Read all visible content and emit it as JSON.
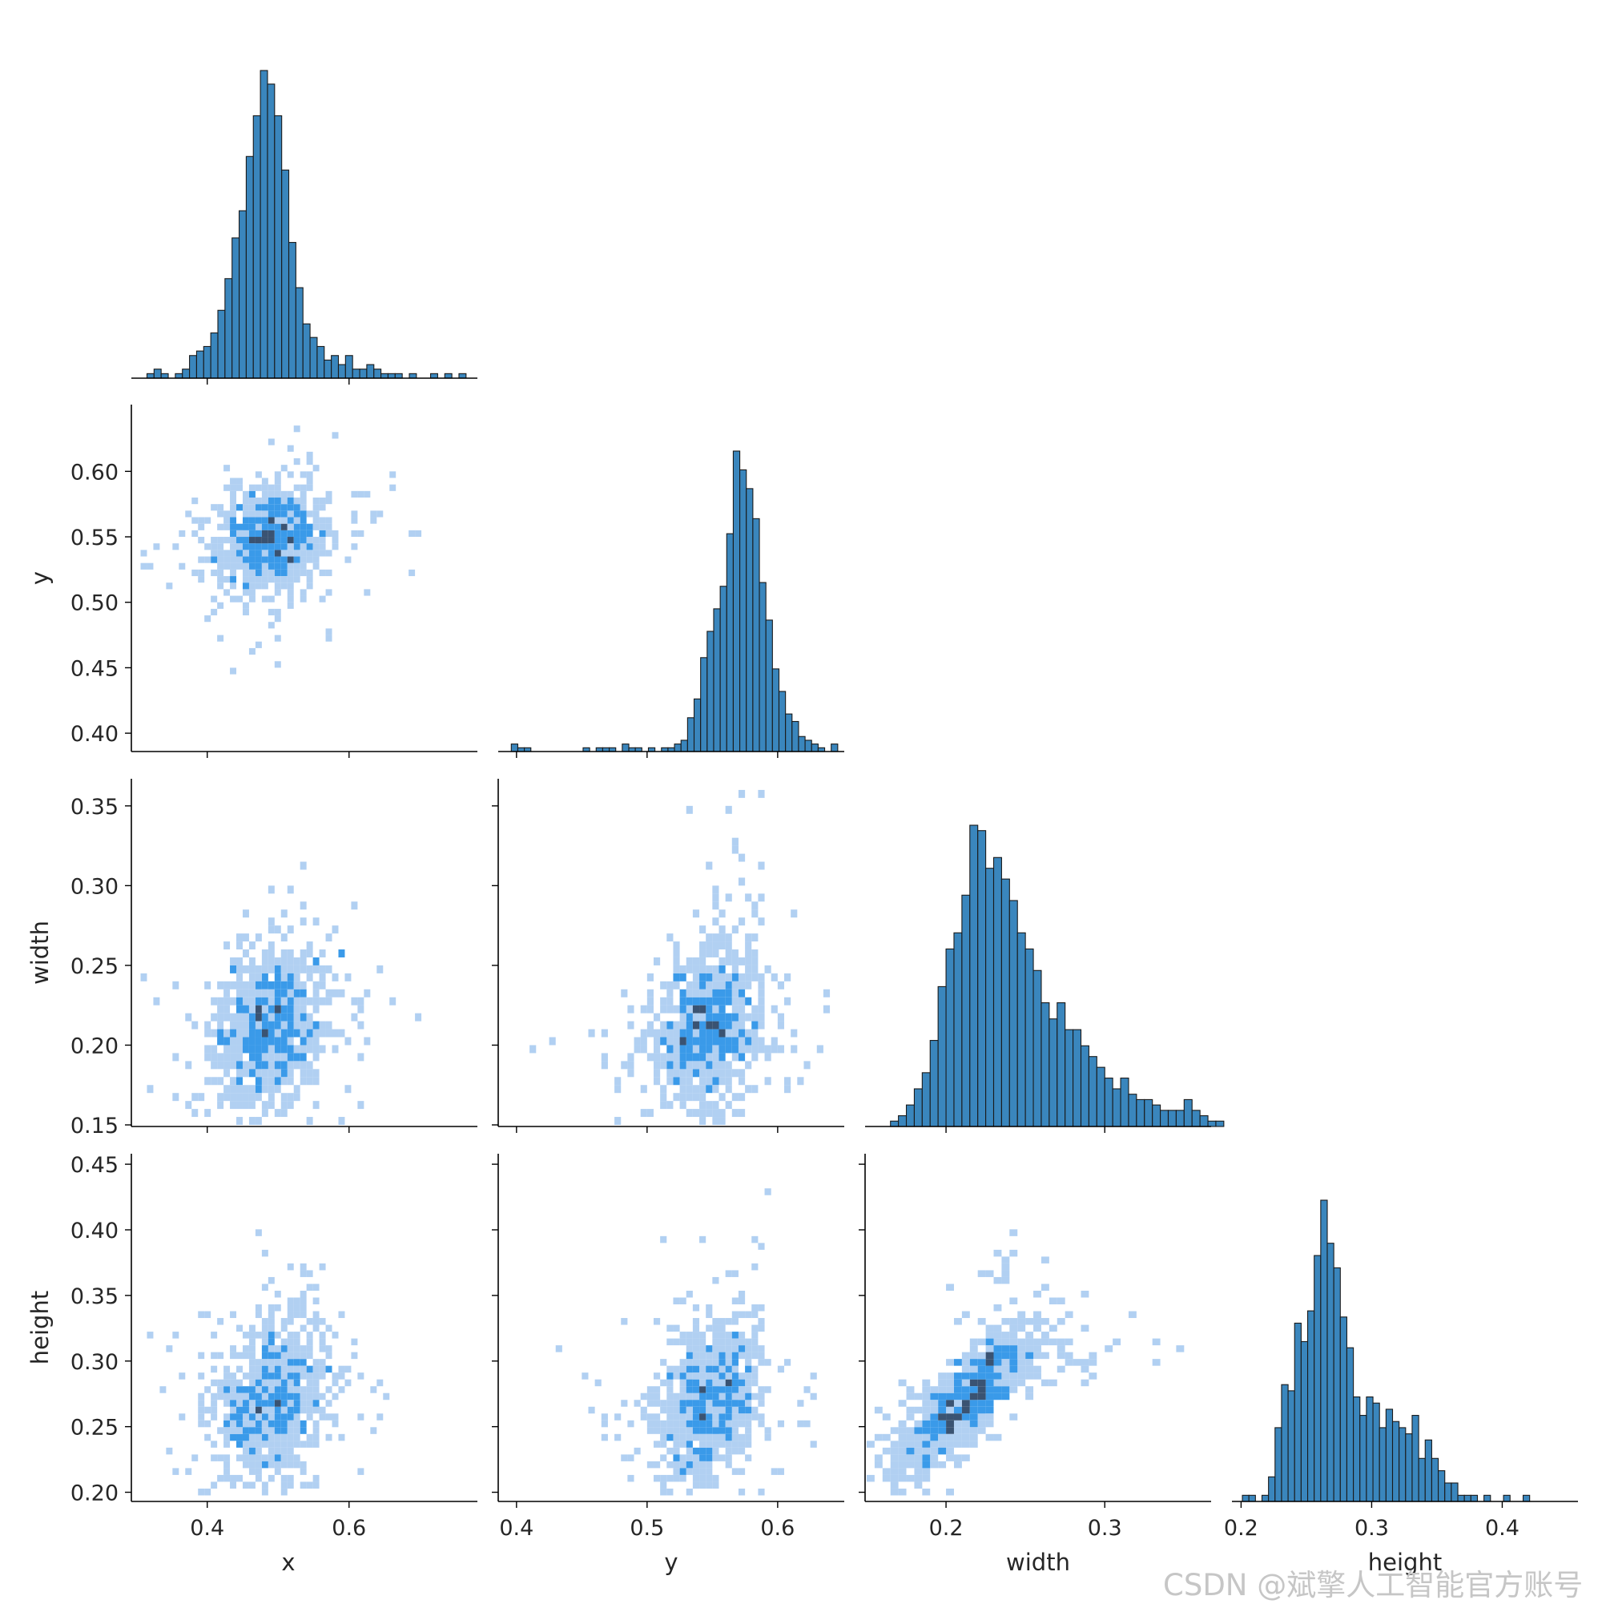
{
  "chart_data": {
    "type": "pairplot",
    "kind": "hist",
    "variables": [
      "x",
      "y",
      "width",
      "height"
    ],
    "corner": true,
    "colors": {
      "bar": "#3a86bd",
      "bar_edge": "#1a1a1a",
      "cell_light": "#a3c8f0",
      "cell_mid": "#2f95e8",
      "cell_dark": "#2f4a6a"
    },
    "axes": {
      "x": {
        "label": "x",
        "range": [
          0.293,
          0.781
        ],
        "ticks": [
          0.4,
          0.6
        ],
        "tick_labels": [
          "0.4",
          "0.6"
        ]
      },
      "y": {
        "label": "y",
        "range": [
          0.386,
          0.651
        ],
        "ticks": [
          0.4,
          0.45,
          0.5,
          0.55,
          0.6
        ],
        "tick_labels": [
          "0.40",
          "0.45",
          "0.50",
          "0.55",
          "0.60"
        ],
        "bottom_ticks": [
          0.4,
          0.5,
          0.6
        ],
        "bottom_tick_labels": [
          "0.4",
          "0.5",
          "0.6"
        ]
      },
      "width": {
        "label": "width",
        "range": [
          0.149,
          0.367
        ],
        "ticks": [
          0.15,
          0.2,
          0.25,
          0.3,
          0.35
        ],
        "tick_labels": [
          "0.15",
          "0.20",
          "0.25",
          "0.30",
          "0.35"
        ],
        "bottom_ticks": [
          0.2,
          0.3
        ],
        "bottom_tick_labels": [
          "0.2",
          "0.3"
        ]
      },
      "height": {
        "label": "height",
        "range": [
          0.193,
          0.458
        ],
        "ticks": [
          0.2,
          0.25,
          0.3,
          0.35,
          0.4,
          0.45
        ],
        "tick_labels": [
          "0.20",
          "0.25",
          "0.30",
          "0.35",
          "0.40",
          "0.45"
        ],
        "bottom_ticks": [
          0.2,
          0.3,
          0.4
        ],
        "bottom_tick_labels": [
          "0.2",
          "0.3",
          "0.4"
        ]
      }
    },
    "histograms": {
      "x": {
        "bin_start": 0.315,
        "bin_width": 0.01,
        "counts": [
          1,
          2,
          1,
          0,
          1,
          2,
          5,
          6,
          7,
          10,
          15,
          22,
          31,
          37,
          49,
          58,
          68,
          65,
          58,
          46,
          30,
          20,
          12,
          9,
          7,
          4,
          5,
          3,
          5,
          2,
          2,
          3,
          2,
          1,
          1,
          1,
          0,
          1,
          0,
          0,
          1,
          0,
          1,
          0,
          1
        ]
      },
      "y": {
        "bin_start": 0.396,
        "bin_width": 0.005,
        "counts": [
          2,
          1,
          1,
          0,
          0,
          0,
          0,
          0,
          0,
          0,
          0,
          1,
          0,
          1,
          1,
          1,
          0,
          2,
          1,
          1,
          0,
          1,
          0,
          1,
          1,
          2,
          3,
          9,
          14,
          25,
          32,
          38,
          44,
          58,
          80,
          75,
          70,
          62,
          45,
          35,
          22,
          16,
          10,
          8,
          4,
          3,
          2,
          1,
          0,
          2
        ]
      },
      "width": {
        "bin_start": 0.155,
        "bin_width": 0.005,
        "counts": [
          0,
          0,
          1,
          2,
          4,
          7,
          10,
          16,
          26,
          33,
          36,
          43,
          56,
          55,
          48,
          50,
          46,
          42,
          36,
          33,
          29,
          23,
          20,
          23,
          18,
          18,
          15,
          13,
          11,
          9,
          7,
          9,
          6,
          5,
          5,
          4,
          3,
          3,
          3,
          5,
          3,
          2,
          1,
          1,
          0,
          0,
          0,
          0,
          0,
          0,
          0,
          0,
          0,
          0
        ]
      },
      "height": {
        "bin_start": 0.201,
        "bin_width": 0.005,
        "counts": [
          1,
          1,
          0,
          1,
          4,
          12,
          19,
          18,
          29,
          26,
          31,
          40,
          49,
          42,
          38,
          30,
          25,
          17,
          14,
          17,
          16,
          12,
          15,
          13,
          12,
          11,
          14,
          7,
          10,
          7,
          5,
          3,
          3,
          1,
          1,
          1,
          0,
          1,
          0,
          0,
          1,
          0,
          0,
          1
        ]
      }
    }
  },
  "watermark": "CSDN @斌擎人工智能官方账号"
}
